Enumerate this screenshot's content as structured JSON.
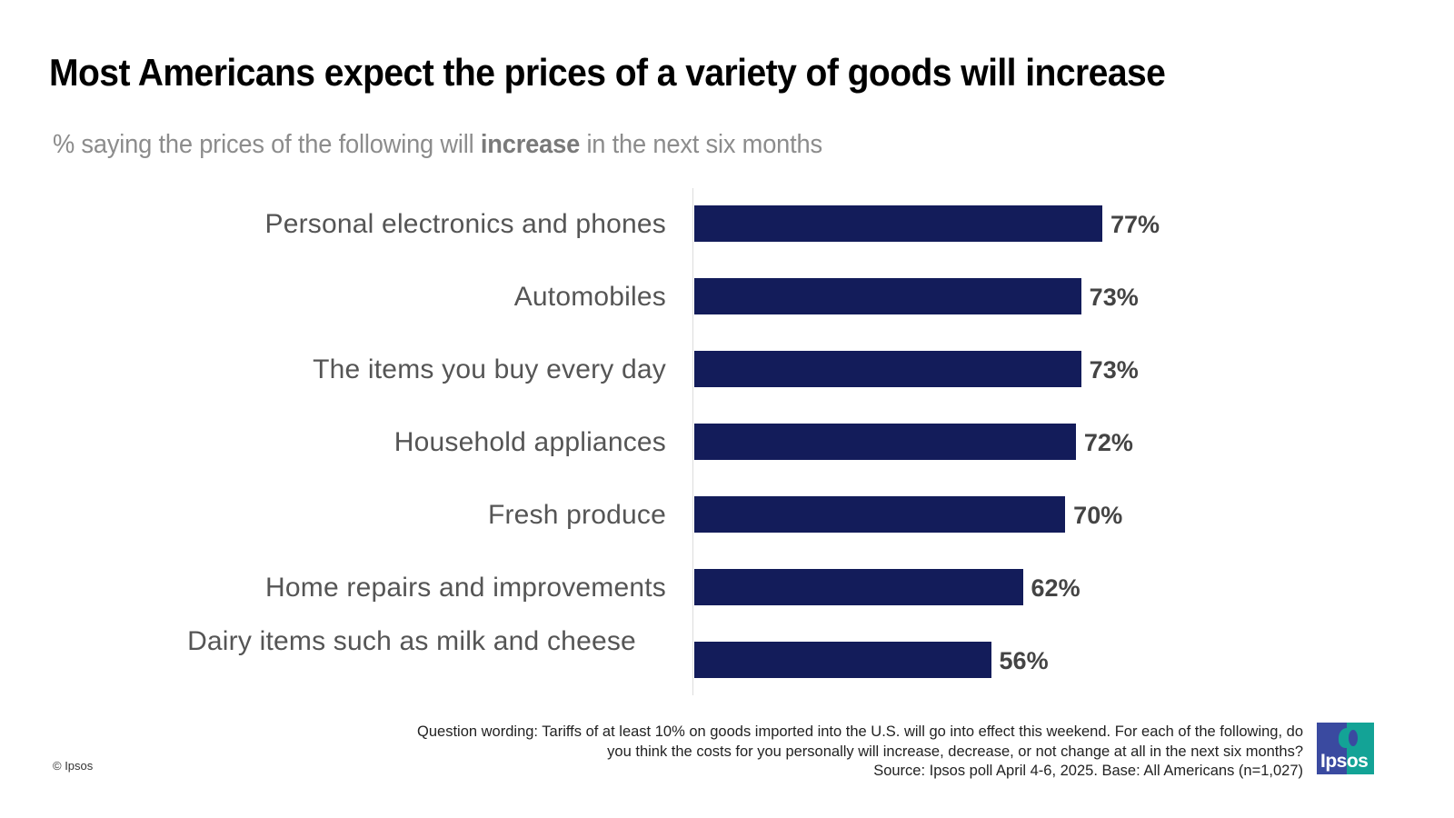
{
  "title": "Most Americans expect the prices of a variety of goods will increase",
  "subtitle": {
    "before": "% saying the prices of the following will ",
    "emphasis": "increase",
    "after": " in the next six months"
  },
  "colors": {
    "bar": "#131c5a",
    "value_label": "#444444",
    "category_label": "#555555",
    "logo_blue": "#3a4aa0",
    "logo_teal": "#13a396"
  },
  "chart_data": {
    "type": "bar",
    "orientation": "horizontal",
    "title": "Most Americans expect the prices of a variety of goods will increase",
    "subtitle": "% saying the prices of the following will increase in the next six months",
    "categories": [
      "Personal electronics and phones",
      "Automobiles",
      "The items you buy every day",
      "Household appliances",
      "Fresh produce",
      "Home repairs and improvements",
      "Dairy items such as milk and cheese"
    ],
    "values": [
      77,
      73,
      73,
      72,
      70,
      62,
      56
    ],
    "value_labels": [
      "77%",
      "73%",
      "73%",
      "72%",
      "70%",
      "62%",
      "56%"
    ],
    "xlabel": "",
    "ylabel": "",
    "xlim": [
      0,
      100
    ],
    "grid": false,
    "legend": "none"
  },
  "footnote": {
    "lines": [
      "Question wording: Tariffs of at least 10% on goods imported into the U.S. will go into effect this weekend. For each of the following, do",
      "you think the costs for you personally will increase, decrease, or not change at all in the next six months?",
      "Source: Ipsos poll April 4-6, 2025. Base: All Americans (n=1,027)"
    ]
  },
  "copyright": "© Ipsos",
  "logo": {
    "text": "Ipsos"
  }
}
